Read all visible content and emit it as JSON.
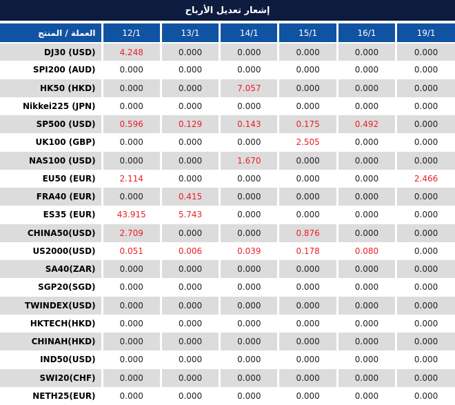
{
  "header": {
    "title": "إشعار تعديل الأرباح"
  },
  "colors": {
    "title_bar_bg": "#0d1b3e",
    "header_bg": "#1153a3",
    "header_text": "#ffffff",
    "row_alt_bg": "#dcdcdc",
    "value_text": "#202020",
    "highlight_red": "#ee1c25"
  },
  "table": {
    "product_column_header": "العملة / المنتج",
    "date_column_headers": [
      "12/1",
      "13/1",
      "14/1",
      "15/1",
      "16/1",
      "19/1"
    ],
    "rows": [
      {
        "product": "DJ30 (USD)",
        "values": [
          "4.248",
          "0.000",
          "0.000",
          "0.000",
          "0.000",
          "0.000"
        ],
        "red": [
          true,
          false,
          false,
          false,
          false,
          false
        ]
      },
      {
        "product": "SPI200 (AUD)",
        "values": [
          "0.000",
          "0.000",
          "0.000",
          "0.000",
          "0.000",
          "0.000"
        ],
        "red": [
          false,
          false,
          false,
          false,
          false,
          false
        ]
      },
      {
        "product": "HK50 (HKD)",
        "values": [
          "0.000",
          "0.000",
          "7.057",
          "0.000",
          "0.000",
          "0.000"
        ],
        "red": [
          false,
          false,
          true,
          false,
          false,
          false
        ]
      },
      {
        "product": "Nikkei225 (JPN)",
        "values": [
          "0.000",
          "0.000",
          "0.000",
          "0.000",
          "0.000",
          "0.000"
        ],
        "red": [
          false,
          false,
          false,
          false,
          false,
          false
        ]
      },
      {
        "product": "SP500 (USD)",
        "values": [
          "0.596",
          "0.129",
          "0.143",
          "0.175",
          "0.492",
          "0.000"
        ],
        "red": [
          true,
          true,
          true,
          true,
          true,
          false
        ]
      },
      {
        "product": "UK100 (GBP)",
        "values": [
          "0.000",
          "0.000",
          "0.000",
          "2.505",
          "0.000",
          "0.000"
        ],
        "red": [
          false,
          false,
          false,
          true,
          false,
          false
        ]
      },
      {
        "product": "NAS100 (USD)",
        "values": [
          "0.000",
          "0.000",
          "1.670",
          "0.000",
          "0.000",
          "0.000"
        ],
        "red": [
          false,
          false,
          true,
          false,
          false,
          false
        ]
      },
      {
        "product": "EU50 (EUR)",
        "values": [
          "2.114",
          "0.000",
          "0.000",
          "0.000",
          "0.000",
          "2.466"
        ],
        "red": [
          true,
          false,
          false,
          false,
          false,
          true
        ]
      },
      {
        "product": "FRA40 (EUR)",
        "values": [
          "0.000",
          "0.415",
          "0.000",
          "0.000",
          "0.000",
          "0.000"
        ],
        "red": [
          false,
          true,
          false,
          false,
          false,
          false
        ]
      },
      {
        "product": "ES35 (EUR)",
        "values": [
          "43.915",
          "5.743",
          "0.000",
          "0.000",
          "0.000",
          "0.000"
        ],
        "red": [
          true,
          true,
          false,
          false,
          false,
          false
        ]
      },
      {
        "product": "CHINA50(USD)",
        "values": [
          "2.709",
          "0.000",
          "0.000",
          "0.876",
          "0.000",
          "0.000"
        ],
        "red": [
          true,
          false,
          false,
          true,
          false,
          false
        ]
      },
      {
        "product": "US2000(USD)",
        "values": [
          "0.051",
          "0.006",
          "0.039",
          "0.178",
          "0.080",
          "0.000"
        ],
        "red": [
          true,
          true,
          true,
          true,
          true,
          false
        ]
      },
      {
        "product": "SA40(ZAR)",
        "values": [
          "0.000",
          "0.000",
          "0.000",
          "0.000",
          "0.000",
          "0.000"
        ],
        "red": [
          false,
          false,
          false,
          false,
          false,
          false
        ]
      },
      {
        "product": "SGP20(SGD)",
        "values": [
          "0.000",
          "0.000",
          "0.000",
          "0.000",
          "0.000",
          "0.000"
        ],
        "red": [
          false,
          false,
          false,
          false,
          false,
          false
        ]
      },
      {
        "product": "TWINDEX(USD)",
        "values": [
          "0.000",
          "0.000",
          "0.000",
          "0.000",
          "0.000",
          "0.000"
        ],
        "red": [
          false,
          false,
          false,
          false,
          false,
          false
        ]
      },
      {
        "product": "HKTECH(HKD)",
        "values": [
          "0.000",
          "0.000",
          "0.000",
          "0.000",
          "0.000",
          "0.000"
        ],
        "red": [
          false,
          false,
          false,
          false,
          false,
          false
        ]
      },
      {
        "product": "CHINAH(HKD)",
        "values": [
          "0.000",
          "0.000",
          "0.000",
          "0.000",
          "0.000",
          "0.000"
        ],
        "red": [
          false,
          false,
          false,
          false,
          false,
          false
        ]
      },
      {
        "product": "IND50(USD)",
        "values": [
          "0.000",
          "0.000",
          "0.000",
          "0.000",
          "0.000",
          "0.000"
        ],
        "red": [
          false,
          false,
          false,
          false,
          false,
          false
        ]
      },
      {
        "product": "SWI20(CHF)",
        "values": [
          "0.000",
          "0.000",
          "0.000",
          "0.000",
          "0.000",
          "0.000"
        ],
        "red": [
          false,
          false,
          false,
          false,
          false,
          false
        ]
      },
      {
        "product": "NETH25(EUR)",
        "values": [
          "0.000",
          "0.000",
          "0.000",
          "0.000",
          "0.000",
          "0.000"
        ],
        "red": [
          false,
          false,
          false,
          false,
          false,
          false
        ]
      }
    ]
  }
}
